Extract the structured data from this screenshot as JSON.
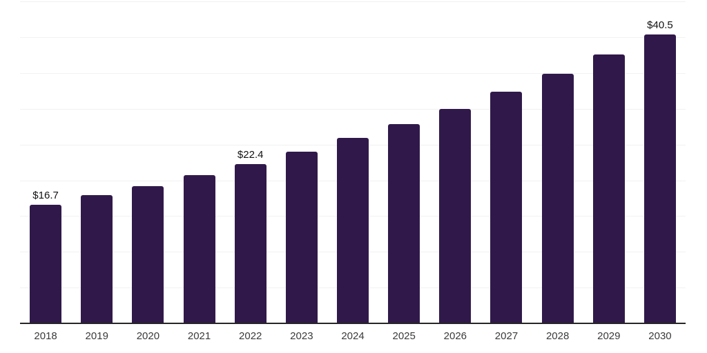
{
  "chart_data": {
    "type": "bar",
    "title": "",
    "xlabel": "",
    "ylabel": "",
    "categories": [
      "2018",
      "2019",
      "2020",
      "2021",
      "2022",
      "2023",
      "2024",
      "2025",
      "2026",
      "2027",
      "2028",
      "2029",
      "2030"
    ],
    "values": [
      16.7,
      18.0,
      19.3,
      20.8,
      22.4,
      24.1,
      26.0,
      28.0,
      30.1,
      32.5,
      35.0,
      37.7,
      40.5
    ],
    "point_labels": [
      "$16.7",
      "",
      "",
      "",
      "$22.4",
      "",
      "",
      "",
      "",
      "",
      "",
      "",
      "$40.5"
    ],
    "ylim": [
      0,
      45.3
    ],
    "gridline_values": [
      5,
      10,
      15,
      20,
      25,
      30,
      35,
      40,
      45
    ],
    "grid": "horizontal-only",
    "legend_position": "none",
    "colors": {
      "bar": "#30194A",
      "gridline": "#F1F1F1",
      "axis_line": "#262626",
      "value_label": "#111111",
      "tick_label": "#3A3A3A",
      "background": "#FFFFFF"
    }
  }
}
